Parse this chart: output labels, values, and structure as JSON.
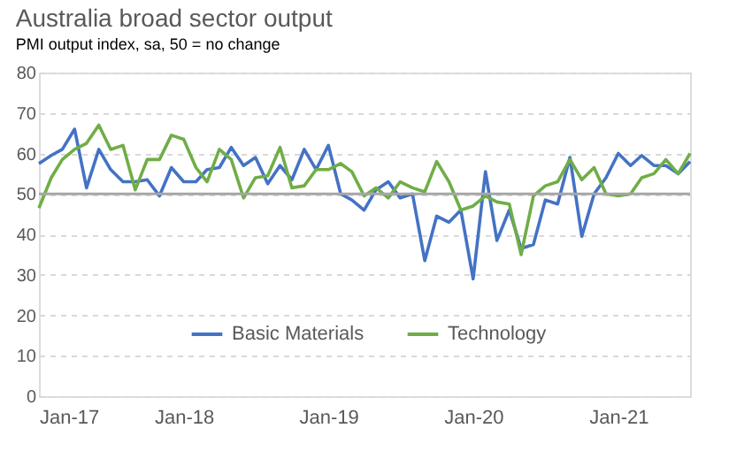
{
  "chart_data": {
    "type": "line",
    "title": "Australia broad sector output",
    "subtitle": "PMI output index, sa, 50 = no change",
    "x": [
      "2017-01",
      "2017-02",
      "2017-03",
      "2017-04",
      "2017-05",
      "2017-06",
      "2017-07",
      "2017-08",
      "2017-09",
      "2017-10",
      "2017-11",
      "2017-12",
      "2018-01",
      "2018-02",
      "2018-03",
      "2018-04",
      "2018-05",
      "2018-06",
      "2018-07",
      "2018-08",
      "2018-09",
      "2018-10",
      "2018-11",
      "2018-12",
      "2019-01",
      "2019-02",
      "2019-03",
      "2019-04",
      "2019-05",
      "2019-06",
      "2019-07",
      "2019-08",
      "2019-09",
      "2019-10",
      "2019-11",
      "2019-12",
      "2020-01",
      "2020-02",
      "2020-03",
      "2020-04",
      "2020-05",
      "2020-06",
      "2020-07",
      "2020-08",
      "2020-09",
      "2020-10",
      "2020-11",
      "2020-12",
      "2021-01",
      "2021-02",
      "2021-03",
      "2021-04",
      "2021-05",
      "2021-06",
      "2021-07"
    ],
    "series": [
      {
        "name": "Basic Materials",
        "color": "#4472c4",
        "values": [
          57.5,
          59.5,
          61,
          66,
          51.5,
          61,
          56,
          53,
          53,
          53.5,
          49.5,
          56.5,
          53,
          53,
          56,
          56.5,
          61.5,
          57,
          59,
          52.5,
          57,
          53.5,
          61,
          56,
          62,
          50,
          48.5,
          46,
          51,
          53,
          49,
          50,
          33.5,
          44.5,
          43,
          46,
          29,
          55.5,
          38.5,
          46,
          36.5,
          37.5,
          48.5,
          47.5,
          59,
          39.5,
          50,
          54,
          60,
          57,
          59.5,
          57,
          57,
          55,
          58
        ]
      },
      {
        "name": "Technology",
        "color": "#70ad47",
        "values": [
          46.5,
          54,
          58.5,
          61,
          62.5,
          67,
          61,
          62,
          51,
          58.5,
          58.5,
          64.5,
          63.5,
          56.5,
          53,
          61,
          58.5,
          49,
          54,
          54.5,
          61.5,
          51.5,
          52,
          56,
          56,
          57.5,
          55.5,
          49.5,
          51.5,
          49,
          53,
          51.5,
          50.5,
          58,
          53,
          46,
          47,
          49.5,
          48,
          47.5,
          35,
          49.5,
          52,
          53,
          58.5,
          53.5,
          56.5,
          50,
          49.5,
          50,
          54,
          55,
          58.5,
          55,
          60
        ]
      }
    ],
    "xlim": [
      "2017-01",
      "2021-07"
    ],
    "xticks": [
      {
        "value": "2017-01",
        "label": "Jan-17"
      },
      {
        "value": "2018-01",
        "label": "Jan-18"
      },
      {
        "value": "2019-01",
        "label": "Jan-19"
      },
      {
        "value": "2020-01",
        "label": "Jan-20"
      },
      {
        "value": "2021-01",
        "label": "Jan-21"
      }
    ],
    "ylim": [
      0,
      80
    ],
    "yticks": [
      0,
      10,
      20,
      30,
      40,
      50,
      60,
      70,
      80
    ],
    "ref_lines": [
      {
        "axis": "y",
        "value": 50,
        "color": "#a6a6a6"
      }
    ],
    "grid": "y",
    "legend": "bottom",
    "marker": "none",
    "line_style": "solid"
  }
}
